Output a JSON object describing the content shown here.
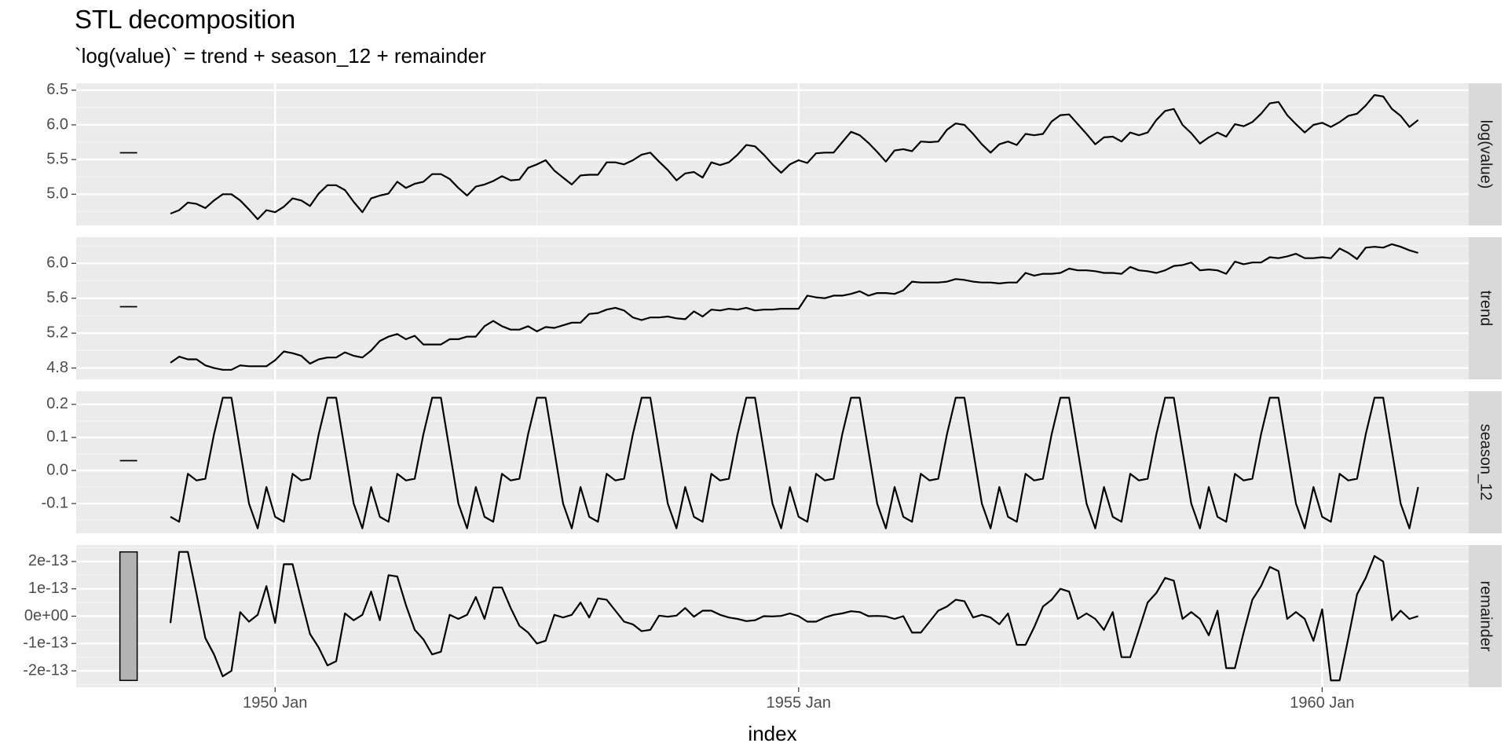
{
  "title": "STL decomposition",
  "subtitle": "`log(value)` = trend + season_12 + remainder",
  "xlabel": "index",
  "chart_data": {
    "type": "line",
    "title": "STL decomposition",
    "subtitle": "`log(value)` = trend + season_12 + remainder",
    "xlabel": "index",
    "x_start": "1949 Jan",
    "x_frequency": "monthly",
    "x_ticks": [
      {
        "label": "1950 Jan",
        "value": 1950.0
      },
      {
        "label": "1955 Jan",
        "value": 1955.0
      },
      {
        "label": "1960 Jan",
        "value": 1960.0
      }
    ],
    "xlim": [
      1948.1,
      1961.4
    ],
    "grid": true,
    "legend": "none",
    "panels": [
      {
        "name": "log(value)",
        "ylim": [
          4.55,
          6.6
        ],
        "yticks": [
          {
            "label": "5.0",
            "value": 5.0
          },
          {
            "label": "5.5",
            "value": 5.5
          },
          {
            "label": "6.0",
            "value": 6.0
          },
          {
            "label": "6.5",
            "value": 6.5
          }
        ],
        "range_bar": 0.0,
        "values": [
          4.72,
          4.77,
          4.88,
          4.86,
          4.8,
          4.91,
          5.0,
          5.0,
          4.91,
          4.78,
          4.64,
          4.77,
          4.74,
          4.82,
          4.94,
          4.91,
          4.83,
          5.01,
          5.13,
          5.13,
          5.06,
          4.89,
          4.74,
          4.94,
          4.98,
          5.01,
          5.18,
          5.09,
          5.15,
          5.18,
          5.29,
          5.29,
          5.22,
          5.09,
          4.98,
          5.11,
          5.14,
          5.19,
          5.26,
          5.2,
          5.21,
          5.38,
          5.43,
          5.49,
          5.34,
          5.24,
          5.14,
          5.27,
          5.28,
          5.28,
          5.46,
          5.46,
          5.43,
          5.49,
          5.57,
          5.6,
          5.47,
          5.35,
          5.2,
          5.3,
          5.32,
          5.24,
          5.46,
          5.42,
          5.46,
          5.57,
          5.71,
          5.69,
          5.57,
          5.43,
          5.31,
          5.43,
          5.49,
          5.45,
          5.59,
          5.6,
          5.6,
          5.75,
          5.9,
          5.85,
          5.74,
          5.61,
          5.47,
          5.63,
          5.65,
          5.62,
          5.76,
          5.75,
          5.76,
          5.93,
          6.02,
          6.0,
          5.87,
          5.72,
          5.6,
          5.72,
          5.76,
          5.71,
          5.87,
          5.85,
          5.87,
          6.05,
          6.14,
          6.15,
          6.01,
          5.87,
          5.72,
          5.82,
          5.83,
          5.76,
          5.89,
          5.85,
          5.89,
          6.07,
          6.2,
          6.23,
          6.0,
          5.88,
          5.73,
          5.82,
          5.89,
          5.83,
          6.01,
          5.98,
          6.04,
          6.16,
          6.31,
          6.33,
          6.14,
          6.01,
          5.89,
          6.0,
          6.03,
          5.97,
          6.04,
          6.13,
          6.16,
          6.28,
          6.43,
          6.41,
          6.23,
          6.13,
          5.97,
          6.07
        ]
      },
      {
        "name": "trend",
        "ylim": [
          4.67,
          6.3
        ],
        "yticks": [
          {
            "label": "4.8",
            "value": 4.8
          },
          {
            "label": "5.2",
            "value": 5.2
          },
          {
            "label": "5.6",
            "value": 5.6
          },
          {
            "label": "6.0",
            "value": 6.0
          }
        ],
        "range_bar": 0.0,
        "values": [
          4.86,
          4.93,
          4.9,
          4.9,
          4.83,
          4.8,
          4.78,
          4.78,
          4.83,
          4.82,
          4.82,
          4.82,
          4.89,
          4.99,
          4.97,
          4.94,
          4.85,
          4.9,
          4.92,
          4.92,
          4.98,
          4.94,
          4.92,
          5.0,
          5.11,
          5.16,
          5.19,
          5.13,
          5.17,
          5.07,
          5.07,
          5.07,
          5.13,
          5.13,
          5.16,
          5.16,
          5.28,
          5.34,
          5.28,
          5.24,
          5.24,
          5.28,
          5.22,
          5.27,
          5.26,
          5.29,
          5.32,
          5.32,
          5.42,
          5.43,
          5.47,
          5.49,
          5.46,
          5.38,
          5.35,
          5.38,
          5.38,
          5.39,
          5.37,
          5.36,
          5.45,
          5.39,
          5.47,
          5.46,
          5.48,
          5.47,
          5.49,
          5.46,
          5.47,
          5.47,
          5.48,
          5.48,
          5.48,
          5.63,
          5.61,
          5.6,
          5.63,
          5.63,
          5.65,
          5.68,
          5.63,
          5.66,
          5.66,
          5.65,
          5.69,
          5.79,
          5.78,
          5.78,
          5.78,
          5.79,
          5.82,
          5.81,
          5.79,
          5.78,
          5.78,
          5.77,
          5.78,
          5.78,
          5.89,
          5.86,
          5.88,
          5.88,
          5.89,
          5.94,
          5.92,
          5.92,
          5.91,
          5.89,
          5.89,
          5.88,
          5.96,
          5.92,
          5.91,
          5.89,
          5.92,
          5.97,
          5.98,
          6.01,
          5.92,
          5.93,
          5.92,
          5.88,
          6.02,
          5.99,
          6.01,
          6.01,
          6.07,
          6.06,
          6.08,
          6.11,
          6.06,
          6.06,
          6.07,
          6.06,
          6.17,
          6.12,
          6.05,
          6.18,
          6.19,
          6.18,
          6.22,
          6.19,
          6.15,
          6.12
        ]
      },
      {
        "name": "season_12",
        "ylim": [
          -0.19,
          0.24
        ],
        "yticks": [
          {
            "label": "-0.1",
            "value": -0.1
          },
          {
            "label": "0.0",
            "value": 0.0
          },
          {
            "label": "0.1",
            "value": 0.1
          },
          {
            "label": "0.2",
            "value": 0.2
          }
        ],
        "range_bar": 0.0,
        "values": [
          -0.14,
          -0.155,
          -0.01,
          -0.03,
          -0.025,
          0.11,
          0.22,
          0.22,
          0.06,
          -0.1,
          -0.175,
          -0.05
        ],
        "periodic": true
      },
      {
        "name": "remainder",
        "ylim": [
          -2.6e-13,
          2.6e-13
        ],
        "yticks": [
          {
            "label": "-2e-13",
            "value": -2e-13
          },
          {
            "label": "-1e-13",
            "value": -1e-13
          },
          {
            "label": "0e+00",
            "value": 0
          },
          {
            "label": "1e-13",
            "value": 1e-13
          },
          {
            "label": "2e-13",
            "value": 2e-13
          }
        ],
        "range_bar_extent": [
          -2.35e-13,
          2.35e-13
        ],
        "values": [
          -0.25,
          2.35,
          2.35,
          0.8,
          -0.8,
          -1.4,
          -2.2,
          -2.0,
          0.15,
          -0.2,
          0.05,
          1.1,
          -0.25,
          1.9,
          1.9,
          0.6,
          -0.65,
          -1.15,
          -1.8,
          -1.65,
          0.1,
          -0.15,
          0.05,
          0.9,
          -0.15,
          1.5,
          1.45,
          0.4,
          -0.5,
          -0.85,
          -1.4,
          -1.3,
          0.05,
          -0.1,
          0.05,
          0.7,
          -0.1,
          1.05,
          1.05,
          0.3,
          -0.35,
          -0.6,
          -1.0,
          -0.9,
          0.05,
          -0.05,
          0.05,
          0.5,
          -0.05,
          0.65,
          0.6,
          0.2,
          -0.2,
          -0.3,
          -0.55,
          -0.5,
          0.02,
          -0.02,
          0.02,
          0.3,
          -0.02,
          0.2,
          0.2,
          0.05,
          -0.05,
          -0.1,
          -0.18,
          -0.15,
          0.0,
          -0.01,
          0.01,
          0.1,
          0.0,
          -0.2,
          -0.2,
          -0.05,
          0.05,
          0.1,
          0.18,
          0.15,
          0.0,
          0.01,
          -0.01,
          -0.1,
          0.0,
          -0.6,
          -0.6,
          -0.2,
          0.2,
          0.35,
          0.6,
          0.55,
          -0.05,
          0.05,
          -0.05,
          -0.3,
          0.1,
          -1.05,
          -1.05,
          -0.4,
          0.35,
          0.6,
          1.0,
          0.9,
          -0.1,
          0.1,
          -0.1,
          -0.5,
          0.15,
          -1.5,
          -1.5,
          -0.5,
          0.5,
          0.85,
          1.4,
          1.3,
          -0.1,
          0.15,
          -0.1,
          -0.7,
          0.2,
          -1.9,
          -1.9,
          -0.6,
          0.6,
          1.1,
          1.8,
          1.65,
          -0.1,
          0.15,
          -0.1,
          -0.9,
          0.25,
          -2.35,
          -2.35,
          -0.8,
          0.8,
          1.4,
          2.2,
          2.0,
          -0.15,
          0.2,
          -0.1,
          0.0
        ],
        "values_unit": "1e-13"
      }
    ]
  }
}
